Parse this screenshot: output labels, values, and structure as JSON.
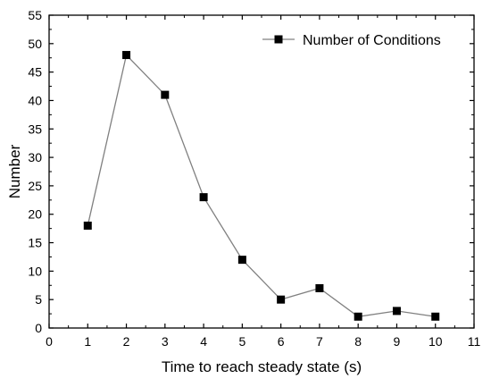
{
  "chart_data": {
    "type": "line",
    "title": "",
    "xlabel": "Time to reach steady state (s)",
    "ylabel": "Number",
    "xlim": [
      0,
      11
    ],
    "ylim": [
      0,
      55
    ],
    "x_ticks": [
      0,
      1,
      2,
      3,
      4,
      5,
      6,
      7,
      8,
      9,
      10,
      11
    ],
    "y_ticks": [
      0,
      5,
      10,
      15,
      20,
      25,
      30,
      35,
      40,
      45,
      50,
      55
    ],
    "grid": false,
    "legend_position": "top-right",
    "series": [
      {
        "name": "Number of Conditions",
        "marker": "square",
        "marker_color": "#000000",
        "line_color": "#808080",
        "x": [
          1,
          2,
          3,
          4,
          5,
          6,
          7,
          8,
          9,
          10
        ],
        "y": [
          18,
          48,
          41,
          23,
          12,
          5,
          7,
          2,
          3,
          2
        ]
      }
    ]
  }
}
